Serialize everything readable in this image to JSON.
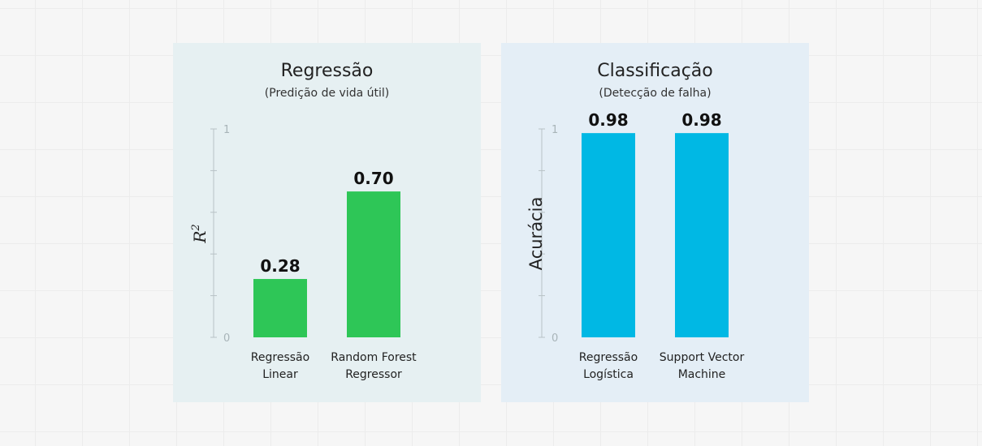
{
  "charts": [
    {
      "id": "left",
      "title": "Regressão",
      "subtitle": "(Predição de vida útil)"
    },
    {
      "id": "right",
      "title": "Classificação",
      "subtitle": "(Detecção de falha)"
    }
  ],
  "chart_data": [
    {
      "type": "bar",
      "title": "Regressão",
      "subtitle": "(Predição de vida útil)",
      "ylabel": "R²",
      "ylabel_main": "R",
      "ylabel_sup": "2",
      "ylim": [
        0,
        1
      ],
      "yticks": [
        "0",
        "1"
      ],
      "categories": [
        [
          "Regressão",
          "Linear"
        ],
        [
          "Random Forest",
          "Regressor"
        ]
      ],
      "values": [
        0.28,
        0.7
      ],
      "value_labels": [
        "0.28",
        "0.70"
      ],
      "bar_color": "#2ec657"
    },
    {
      "type": "bar",
      "title": "Classificação",
      "subtitle": "(Detecção de falha)",
      "ylabel": "Acurácia",
      "ylim": [
        0,
        1
      ],
      "yticks": [
        "0",
        "1"
      ],
      "categories": [
        [
          "Regressão",
          "Logística"
        ],
        [
          "Support Vector",
          "Machine"
        ]
      ],
      "values": [
        0.98,
        0.98
      ],
      "value_labels": [
        "0.98",
        "0.98"
      ],
      "bar_color": "#00b8e4"
    }
  ]
}
